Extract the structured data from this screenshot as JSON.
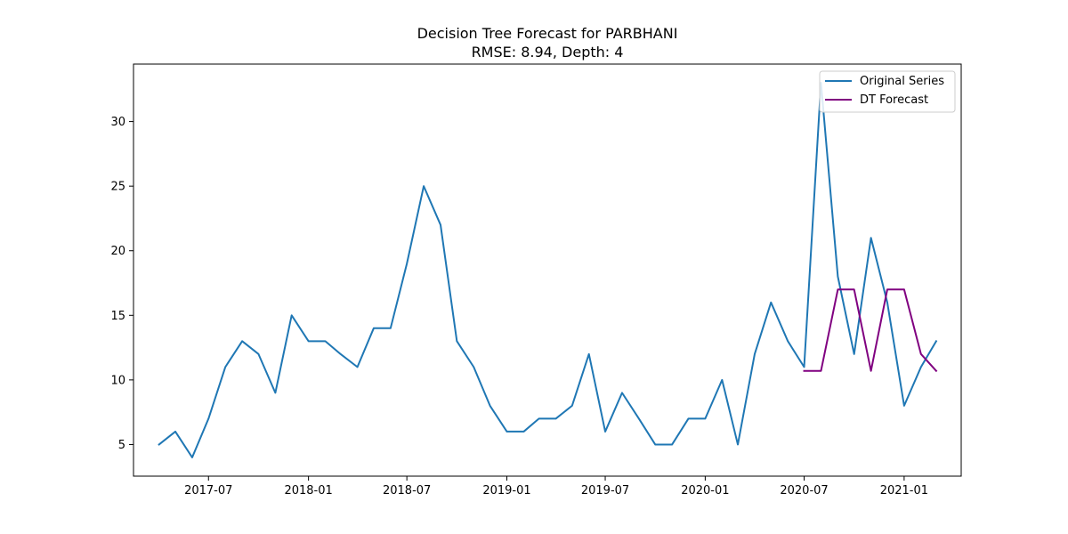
{
  "chart_data": {
    "type": "line",
    "title": "Decision Tree Forecast for PARBHANI",
    "subtitle": "RMSE: 8.94, Depth: 4",
    "xlabel": "",
    "ylabel": "",
    "xlim": [
      "2017-02-13",
      "2021-04-16"
    ],
    "ylim": [
      2.55,
      34.45
    ],
    "x_ticks": [
      "2017-07",
      "2018-01",
      "2018-07",
      "2019-01",
      "2019-07",
      "2020-01",
      "2020-07",
      "2021-01"
    ],
    "y_ticks": [
      5,
      10,
      15,
      20,
      25,
      30
    ],
    "grid": false,
    "legend": "top-right",
    "series": [
      {
        "name": "Original Series",
        "color": "#1f77b4",
        "x": [
          "2017-04",
          "2017-05",
          "2017-06",
          "2017-07",
          "2017-08",
          "2017-09",
          "2017-10",
          "2017-11",
          "2017-12",
          "2018-01",
          "2018-02",
          "2018-03",
          "2018-04",
          "2018-05",
          "2018-06",
          "2018-07",
          "2018-08",
          "2018-09",
          "2018-10",
          "2018-11",
          "2018-12",
          "2019-01",
          "2019-02",
          "2019-03",
          "2019-04",
          "2019-05",
          "2019-06",
          "2019-07",
          "2019-08",
          "2019-09",
          "2019-10",
          "2019-11",
          "2019-12",
          "2020-01",
          "2020-02",
          "2020-03",
          "2020-04",
          "2020-05",
          "2020-06",
          "2020-07",
          "2020-08",
          "2020-09",
          "2020-10",
          "2020-11",
          "2020-12",
          "2021-01",
          "2021-02",
          "2021-03"
        ],
        "y": [
          5,
          6,
          4,
          7,
          11,
          13,
          12,
          9,
          15,
          13,
          13,
          12,
          11,
          14,
          14,
          19,
          25,
          22,
          13,
          11,
          8,
          6,
          6,
          7,
          7,
          8,
          12,
          6,
          9,
          7,
          5,
          5,
          7,
          7,
          10,
          5,
          12,
          16,
          13,
          11,
          33,
          18,
          12,
          21,
          16,
          8,
          11,
          13
        ]
      },
      {
        "name": "DT Forecast",
        "color": "#800080",
        "x": [
          "2020-07",
          "2020-08",
          "2020-09",
          "2020-10",
          "2020-11",
          "2020-12",
          "2021-01",
          "2021-02",
          "2021-03"
        ],
        "y": [
          10.7,
          10.7,
          17,
          17,
          10.7,
          17,
          17,
          12,
          10.7
        ]
      }
    ]
  }
}
